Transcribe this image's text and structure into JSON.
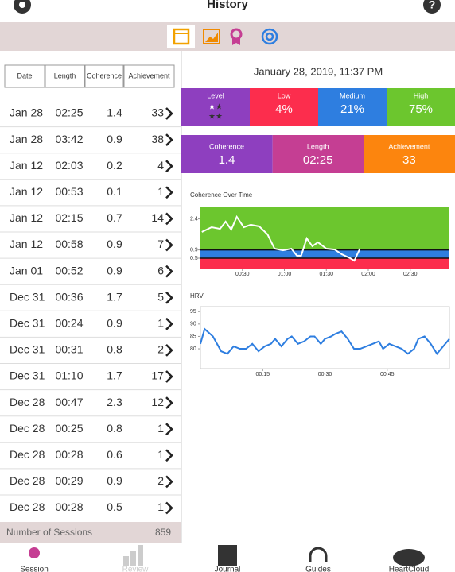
{
  "header": {
    "title": "History"
  },
  "table": {
    "columns": [
      "Date",
      "Length",
      "Coherence",
      "Achievement"
    ],
    "rows": [
      [
        "Jan 28",
        "02:25",
        1.4,
        33
      ],
      [
        "Jan 28",
        "03:42",
        0.9,
        38
      ],
      [
        "Jan 12",
        "02:03",
        0.2,
        4
      ],
      [
        "Jan 12",
        "00:53",
        0.1,
        1
      ],
      [
        "Jan 12",
        "02:15",
        0.7,
        14
      ],
      [
        "Jan 12",
        "00:58",
        0.9,
        7
      ],
      [
        "Jan 01",
        "00:52",
        0.9,
        6
      ],
      [
        "Dec 31",
        "00:36",
        1.7,
        5
      ],
      [
        "Dec 31",
        "00:24",
        0.9,
        1
      ],
      [
        "Dec 31",
        "00:31",
        0.8,
        2
      ],
      [
        "Dec 31",
        "01:10",
        1.7,
        17
      ],
      [
        "Dec 28",
        "00:47",
        2.3,
        12
      ],
      [
        "Dec 28",
        "00:25",
        0.8,
        1
      ],
      [
        "Dec 28",
        "00:28",
        0.6,
        1
      ],
      [
        "Dec 28",
        "00:29",
        0.9,
        2
      ],
      [
        "Dec 28",
        "00:28",
        0.5,
        1
      ]
    ]
  },
  "summary": {
    "label": "Number of Sessions",
    "value": 859
  },
  "detail": {
    "datetime": "January 28, 2019, 11:37 PM",
    "level_title": "Level",
    "levels": [
      {
        "label": "Low",
        "value": "4%",
        "color": "#fc2d4d"
      },
      {
        "label": "Medium",
        "value": "21%",
        "color": "#2e7ee0"
      },
      {
        "label": "High",
        "value": "75%",
        "color": "#6cc62e"
      }
    ],
    "stats": [
      {
        "label": "Coherence",
        "value": "1.4",
        "color": "#8e3fbf"
      },
      {
        "label": "Length",
        "value": "02:25",
        "color": "#c53e93"
      },
      {
        "label": "Achievement",
        "value": "33",
        "color": "#fc850e"
      }
    ]
  },
  "charts": [
    {
      "type": "line",
      "title": "Coherence Over Time",
      "color": "#ffffff",
      "x": [
        1,
        8,
        14,
        18,
        22,
        26,
        31,
        36,
        42,
        48,
        53,
        59,
        65,
        69,
        72,
        76,
        80,
        84,
        90,
        96,
        101,
        107,
        110,
        114
      ],
      "values": [
        1.77,
        2.0,
        1.92,
        2.27,
        1.88,
        2.5,
        2.0,
        2.12,
        2.04,
        1.65,
        0.96,
        0.88,
        0.96,
        0.62,
        0.62,
        1.46,
        1.08,
        1.27,
        0.96,
        0.92,
        0.69,
        0.5,
        0.38,
        0.96
      ],
      "xlim": [
        0,
        178
      ],
      "ylim": [
        0,
        3
      ],
      "xticks": [
        {
          "value": 30,
          "label": "00:30"
        },
        {
          "value": 60,
          "label": "01:00"
        },
        {
          "value": 90,
          "label": "01:30"
        },
        {
          "value": 120,
          "label": "02:00"
        },
        {
          "value": 150,
          "label": "02:30"
        }
      ],
      "yticks": [
        0.5,
        0.9,
        2.4
      ],
      "band_colors": [
        "#fc2d4d",
        "#2e7ee0",
        "#6cc62e"
      ]
    },
    {
      "type": "line",
      "title": "HRV",
      "color": "#2e7ee0",
      "x": [
        0,
        1,
        3,
        5,
        6.5,
        8,
        9.5,
        11,
        12.5,
        14,
        15.5,
        17,
        18,
        19.5,
        21,
        22,
        23.5,
        25,
        26.5,
        27.5,
        29,
        30,
        31.5,
        32.5,
        34,
        35.5,
        37,
        38.5,
        40,
        41.5,
        43,
        44,
        45.5,
        47,
        48.5,
        50,
        51.5,
        52.5,
        54,
        55.5,
        57,
        58,
        60
      ],
      "values": [
        82,
        88,
        85,
        79,
        78,
        81,
        80,
        80,
        82,
        79,
        81,
        82,
        84,
        81,
        84,
        85,
        82,
        83,
        85,
        85,
        82,
        84,
        85,
        86,
        87,
        84,
        80,
        80,
        81,
        82,
        83,
        80,
        82,
        81,
        80,
        78,
        80,
        84,
        85,
        82,
        78,
        80,
        84
      ],
      "xlim": [
        0,
        60
      ],
      "ylim": [
        72,
        97
      ],
      "xticks": [
        {
          "value": 15,
          "label": "00:15"
        },
        {
          "value": 30,
          "label": "00:30"
        },
        {
          "value": 45,
          "label": "00:45"
        }
      ],
      "yticks": [
        80,
        85,
        90,
        95
      ]
    }
  ],
  "nav": [
    "Session",
    "Review",
    "Journal",
    "Guides",
    "HeartCloud"
  ]
}
